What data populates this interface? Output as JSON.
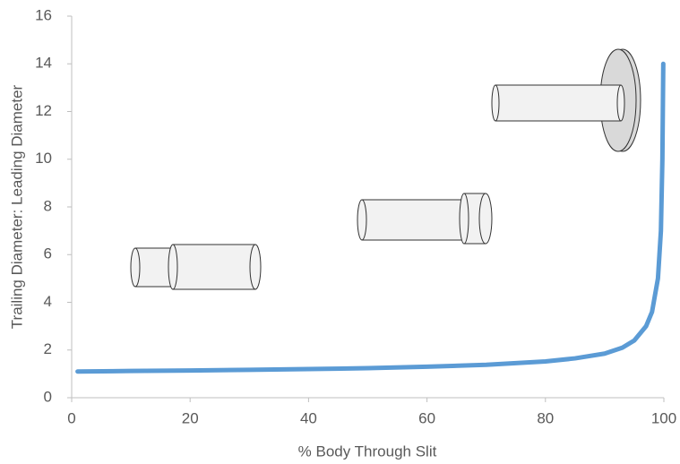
{
  "chart_data": {
    "type": "line",
    "x_label": "% Body Through Slit",
    "y_label": "Trailing Diameter: Leading Diameter",
    "xlim": [
      0,
      100
    ],
    "xticks": [
      0,
      20,
      40,
      60,
      80,
      100
    ],
    "ylim": [
      0,
      16
    ],
    "yticks": [
      0,
      2,
      4,
      6,
      8,
      10,
      12,
      14,
      16
    ],
    "series": [
      {
        "color": "#5b9bd5",
        "x": [
          1,
          10,
          20,
          30,
          40,
          50,
          60,
          70,
          80,
          85,
          90,
          93,
          95,
          97,
          98,
          99,
          99.5,
          99.75,
          99.9
        ],
        "values": [
          1.1,
          1.12,
          1.14,
          1.17,
          1.2,
          1.24,
          1.3,
          1.38,
          1.52,
          1.65,
          1.85,
          2.1,
          2.4,
          3.0,
          3.6,
          5,
          7,
          10,
          14
        ]
      }
    ]
  }
}
